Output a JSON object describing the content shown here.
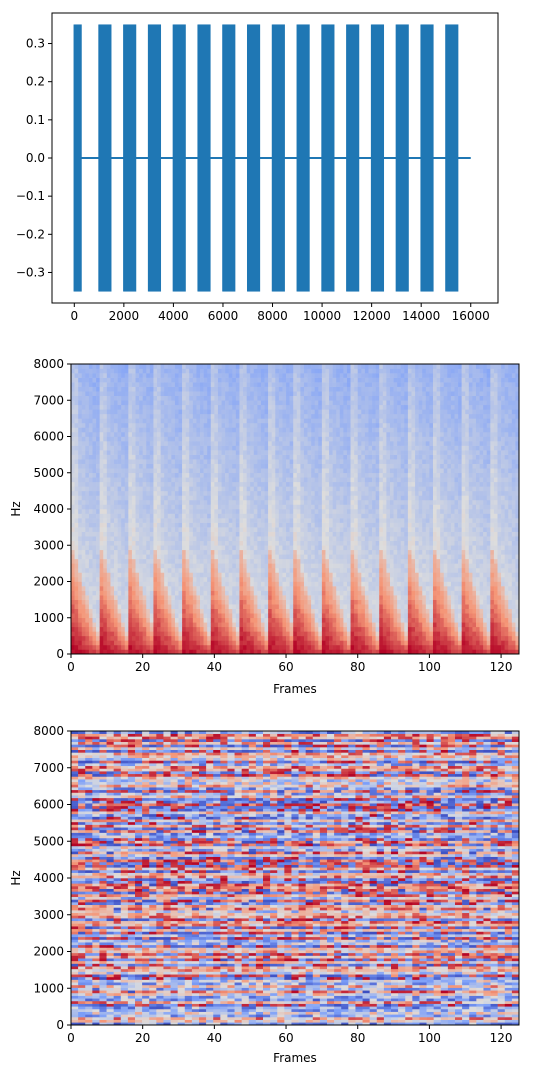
{
  "chart_data": [
    {
      "type": "line",
      "title": "",
      "xlabel": "",
      "ylabel": "",
      "xlim": [
        -900,
        17100
      ],
      "ylim": [
        -0.38,
        0.38
      ],
      "xticks": [
        0,
        2000,
        4000,
        6000,
        8000,
        10000,
        12000,
        14000,
        16000
      ],
      "yticks": [
        -0.3,
        -0.2,
        -0.1,
        0.0,
        0.1,
        0.2,
        0.3
      ],
      "ytick_labels": [
        "−0.3",
        "−0.2",
        "−0.1",
        "0.0",
        "0.1",
        "0.2",
        "0.3"
      ],
      "grid": false,
      "color": "#1f77b4",
      "series": [
        {
          "amplitude": 0.35,
          "samples": 16000,
          "bursts": [
            [
              0,
              300
            ],
            [
              1000,
              1500
            ],
            [
              2000,
              2500
            ],
            [
              3000,
              3500
            ],
            [
              4000,
              4500
            ],
            [
              5000,
              5500
            ],
            [
              6000,
              6500
            ],
            [
              7000,
              7500
            ],
            [
              8000,
              8500
            ],
            [
              9000,
              9500
            ],
            [
              10000,
              10500
            ],
            [
              11000,
              11500
            ],
            [
              12000,
              12500
            ],
            [
              13000,
              13500
            ],
            [
              14000,
              14500
            ],
            [
              15000,
              15500
            ]
          ]
        }
      ]
    },
    {
      "type": "heatmap",
      "title": "",
      "xlabel": "Frames",
      "ylabel": "Hz",
      "xlim": [
        0,
        125
      ],
      "ylim": [
        0,
        8000
      ],
      "xticks": [
        0,
        20,
        40,
        60,
        80,
        100,
        120
      ],
      "yticks": [
        0,
        1000,
        2000,
        3000,
        4000,
        5000,
        6000,
        7000,
        8000
      ],
      "colormap": "coolwarm",
      "onset_frames": [
        0,
        8,
        16,
        23,
        31,
        39,
        47,
        55,
        62,
        70,
        78,
        86,
        94,
        101,
        109,
        117,
        125
      ]
    },
    {
      "type": "heatmap",
      "title": "",
      "xlabel": "Frames",
      "ylabel": "Hz",
      "xlim": [
        0,
        125
      ],
      "ylim": [
        0,
        8000
      ],
      "xticks": [
        0,
        20,
        40,
        60,
        80,
        100,
        120
      ],
      "yticks": [
        0,
        1000,
        2000,
        3000,
        4000,
        5000,
        6000,
        7000,
        8000
      ],
      "colormap": "coolwarm",
      "pattern": "random phase"
    }
  ],
  "colors": {
    "line": "#1f77b4",
    "cold": "#3b4cc0",
    "neutral": "#dddddd",
    "hot": "#b40426"
  }
}
